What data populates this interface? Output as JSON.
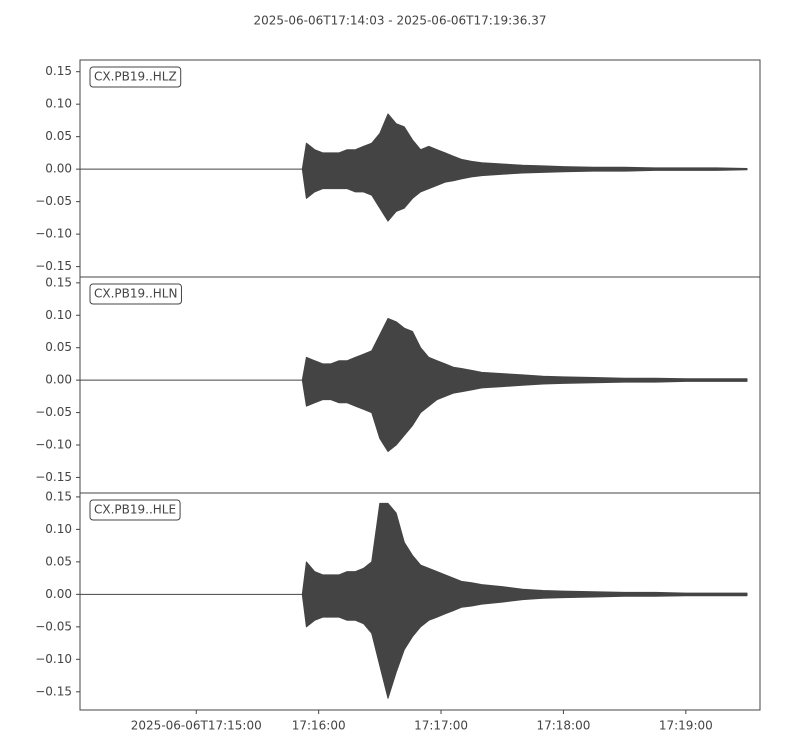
{
  "title": "2025-06-06T17:14:03  -  2025-06-06T17:19:36.37",
  "chart_data": [
    {
      "type": "waveform",
      "label": "CX.PB19..HLZ",
      "color": "#444444",
      "x": [
        "2025-06-06T17:14:03",
        "2025-06-06T17:15:52",
        "2025-06-06T17:15:54",
        "2025-06-06T17:15:58",
        "2025-06-06T17:16:02",
        "2025-06-06T17:16:06",
        "2025-06-06T17:16:10",
        "2025-06-06T17:16:14",
        "2025-06-06T17:16:18",
        "2025-06-06T17:16:22",
        "2025-06-06T17:16:26",
        "2025-06-06T17:16:30",
        "2025-06-06T17:16:34",
        "2025-06-06T17:16:38",
        "2025-06-06T17:16:42",
        "2025-06-06T17:16:46",
        "2025-06-06T17:16:50",
        "2025-06-06T17:16:54",
        "2025-06-06T17:16:58",
        "2025-06-06T17:17:02",
        "2025-06-06T17:17:06",
        "2025-06-06T17:17:10",
        "2025-06-06T17:17:15",
        "2025-06-06T17:17:20",
        "2025-06-06T17:17:30",
        "2025-06-06T17:17:40",
        "2025-06-06T17:17:50",
        "2025-06-06T17:18:00",
        "2025-06-06T17:18:15",
        "2025-06-06T17:18:30",
        "2025-06-06T17:18:45",
        "2025-06-06T17:19:00",
        "2025-06-06T17:19:15",
        "2025-06-06T17:19:30"
      ],
      "values_max": [
        0,
        0,
        0.04,
        0.03,
        0.025,
        0.025,
        0.025,
        0.03,
        0.03,
        0.035,
        0.04,
        0.055,
        0.085,
        0.07,
        0.065,
        0.045,
        0.03,
        0.035,
        0.03,
        0.025,
        0.02,
        0.015,
        0.012,
        0.01,
        0.008,
        0.006,
        0.005,
        0.004,
        0.003,
        0.003,
        0.002,
        0.002,
        0.002,
        0.001
      ],
      "values_min": [
        0,
        0,
        -0.045,
        -0.035,
        -0.03,
        -0.03,
        -0.03,
        -0.03,
        -0.035,
        -0.035,
        -0.04,
        -0.06,
        -0.08,
        -0.065,
        -0.06,
        -0.045,
        -0.035,
        -0.03,
        -0.025,
        -0.02,
        -0.018,
        -0.015,
        -0.012,
        -0.01,
        -0.008,
        -0.006,
        -0.005,
        -0.004,
        -0.003,
        -0.003,
        -0.002,
        -0.002,
        -0.002,
        -0.001
      ],
      "xlim": [
        "2025-06-06T17:14:03",
        "2025-06-06T17:19:36.37"
      ],
      "ylim": [
        -0.166,
        0.168
      ],
      "yticks": [
        0.15,
        {
          "value": 0.1,
          "label": "0.10"
        },
        0.05,
        {
          "value": 0,
          "label": "0.00"
        },
        {
          "value": -0.05,
          "label": "−0.05"
        },
        {
          "value": -0.1,
          "label": "−0.10"
        },
        {
          "value": -0.15,
          "label": "−0.15"
        }
      ]
    },
    {
      "type": "waveform",
      "label": "CX.PB19..HLN",
      "color": "#444444",
      "x": [
        "2025-06-06T17:14:03",
        "2025-06-06T17:15:52",
        "2025-06-06T17:15:54",
        "2025-06-06T17:15:58",
        "2025-06-06T17:16:02",
        "2025-06-06T17:16:06",
        "2025-06-06T17:16:10",
        "2025-06-06T17:16:14",
        "2025-06-06T17:16:18",
        "2025-06-06T17:16:22",
        "2025-06-06T17:16:26",
        "2025-06-06T17:16:30",
        "2025-06-06T17:16:34",
        "2025-06-06T17:16:38",
        "2025-06-06T17:16:42",
        "2025-06-06T17:16:46",
        "2025-06-06T17:16:50",
        "2025-06-06T17:16:54",
        "2025-06-06T17:16:58",
        "2025-06-06T17:17:02",
        "2025-06-06T17:17:06",
        "2025-06-06T17:17:10",
        "2025-06-06T17:17:15",
        "2025-06-06T17:17:20",
        "2025-06-06T17:17:30",
        "2025-06-06T17:17:40",
        "2025-06-06T17:17:50",
        "2025-06-06T17:18:00",
        "2025-06-06T17:18:15",
        "2025-06-06T17:18:30",
        "2025-06-06T17:18:45",
        "2025-06-06T17:19:00",
        "2025-06-06T17:19:15",
        "2025-06-06T17:19:30"
      ],
      "values_max": [
        0,
        0,
        0.035,
        0.03,
        0.025,
        0.025,
        0.03,
        0.03,
        0.035,
        0.04,
        0.045,
        0.07,
        0.095,
        0.09,
        0.08,
        0.075,
        0.05,
        0.035,
        0.03,
        0.025,
        0.02,
        0.018,
        0.015,
        0.012,
        0.01,
        0.008,
        0.006,
        0.005,
        0.004,
        0.003,
        0.003,
        0.002,
        0.002,
        0.002
      ],
      "values_min": [
        0,
        0,
        -0.04,
        -0.035,
        -0.03,
        -0.03,
        -0.035,
        -0.035,
        -0.04,
        -0.045,
        -0.05,
        -0.09,
        -0.11,
        -0.1,
        -0.085,
        -0.07,
        -0.05,
        -0.04,
        -0.03,
        -0.025,
        -0.02,
        -0.018,
        -0.015,
        -0.012,
        -0.01,
        -0.008,
        -0.006,
        -0.005,
        -0.004,
        -0.003,
        -0.003,
        -0.002,
        -0.002,
        -0.002
      ],
      "xlim": [
        "2025-06-06T17:14:03",
        "2025-06-06T17:19:36.37"
      ],
      "ylim": [
        -0.174,
        0.159
      ],
      "yticks": [
        0.15,
        {
          "value": 0.1,
          "label": "0.10"
        },
        0.05,
        {
          "value": 0,
          "label": "0.00"
        },
        {
          "value": -0.05,
          "label": "−0.05"
        },
        {
          "value": -0.1,
          "label": "−0.10"
        },
        {
          "value": -0.15,
          "label": "−0.15"
        }
      ]
    },
    {
      "type": "waveform",
      "label": "CX.PB19..HLE",
      "color": "#444444",
      "x": [
        "2025-06-06T17:14:03",
        "2025-06-06T17:15:52",
        "2025-06-06T17:15:54",
        "2025-06-06T17:15:58",
        "2025-06-06T17:16:02",
        "2025-06-06T17:16:06",
        "2025-06-06T17:16:10",
        "2025-06-06T17:16:14",
        "2025-06-06T17:16:18",
        "2025-06-06T17:16:22",
        "2025-06-06T17:16:26",
        "2025-06-06T17:16:30",
        "2025-06-06T17:16:34",
        "2025-06-06T17:16:38",
        "2025-06-06T17:16:42",
        "2025-06-06T17:16:46",
        "2025-06-06T17:16:50",
        "2025-06-06T17:16:54",
        "2025-06-06T17:16:58",
        "2025-06-06T17:17:02",
        "2025-06-06T17:17:06",
        "2025-06-06T17:17:10",
        "2025-06-06T17:17:15",
        "2025-06-06T17:17:20",
        "2025-06-06T17:17:30",
        "2025-06-06T17:17:40",
        "2025-06-06T17:17:50",
        "2025-06-06T17:18:00",
        "2025-06-06T17:18:15",
        "2025-06-06T17:18:30",
        "2025-06-06T17:18:45",
        "2025-06-06T17:19:00",
        "2025-06-06T17:19:15",
        "2025-06-06T17:19:30"
      ],
      "values_max": [
        0,
        0,
        0.05,
        0.035,
        0.03,
        0.03,
        0.03,
        0.035,
        0.035,
        0.04,
        0.05,
        0.14,
        0.14,
        0.125,
        0.08,
        0.06,
        0.045,
        0.04,
        0.035,
        0.03,
        0.025,
        0.02,
        0.018,
        0.015,
        0.012,
        0.008,
        0.006,
        0.005,
        0.004,
        0.003,
        0.003,
        0.002,
        0.002,
        0.002
      ],
      "values_min": [
        0,
        0,
        -0.05,
        -0.04,
        -0.035,
        -0.035,
        -0.035,
        -0.04,
        -0.04,
        -0.045,
        -0.06,
        -0.11,
        -0.16,
        -0.12,
        -0.085,
        -0.065,
        -0.05,
        -0.04,
        -0.035,
        -0.03,
        -0.025,
        -0.02,
        -0.018,
        -0.015,
        -0.012,
        -0.008,
        -0.006,
        -0.005,
        -0.004,
        -0.003,
        -0.003,
        -0.002,
        -0.002,
        -0.002
      ],
      "xlim": [
        "2025-06-06T17:14:03",
        "2025-06-06T17:19:36.37"
      ],
      "ylim": [
        -0.178,
        0.156
      ],
      "yticks": [
        0.15,
        {
          "value": 0.1,
          "label": "0.10"
        },
        0.05,
        {
          "value": 0,
          "label": "0.00"
        },
        {
          "value": -0.05,
          "label": "−0.05"
        },
        {
          "value": -0.1,
          "label": "−0.10"
        },
        {
          "value": -0.15,
          "label": "−0.15"
        }
      ],
      "xticks": [
        "2025-06-06T17:15:00",
        {
          "value": "2025-06-06T17:16:00",
          "label": "17:16:00"
        },
        {
          "value": "2025-06-06T17:17:00",
          "label": "17:17:00"
        },
        {
          "value": "2025-06-06T17:18:00",
          "label": "17:18:00"
        },
        {
          "value": "2025-06-06T17:19:00",
          "label": "17:19:00"
        }
      ]
    }
  ]
}
